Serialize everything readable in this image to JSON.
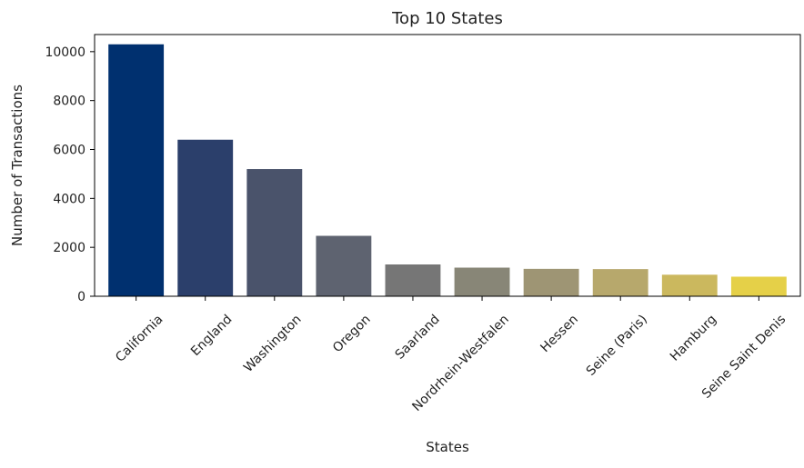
{
  "chart_data": {
    "type": "bar",
    "title": "Top 10 States",
    "xlabel": "States",
    "ylabel": "Number of Transactions",
    "categories": [
      "California",
      "England",
      "Washington",
      "Oregon",
      "Saarland",
      "Nordrhein-Westfalen",
      "Hessen",
      "Seine (Paris)",
      "Hamburg",
      "Seine Saint Denis"
    ],
    "values": [
      10300,
      6400,
      5200,
      2470,
      1300,
      1170,
      1120,
      1110,
      880,
      800
    ],
    "colors": [
      "#00306f",
      "#2b3f6b",
      "#4a536b",
      "#5e6370",
      "#767676",
      "#888677",
      "#9e9574",
      "#b7a86c",
      "#cbb85e",
      "#e5d048"
    ],
    "ylim": [
      0,
      10700
    ],
    "yticks": [
      0,
      2000,
      4000,
      6000,
      8000,
      10000
    ],
    "grid": false,
    "legend": "none"
  }
}
